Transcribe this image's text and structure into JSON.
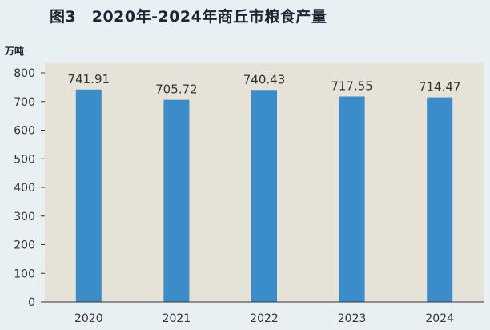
{
  "title": "图3　2020年-2024年商丘市粮食产量",
  "unit_label": "万吨",
  "colors": {
    "bar": "#3a8dc8",
    "plot_bg": "#e6e2d8",
    "page_bg": "#e9f0f4",
    "axis": "#333333",
    "text": "#333333"
  },
  "chart_data": {
    "type": "bar",
    "title": "图3　2020年-2024年商丘市粮食产量",
    "ylabel": "万吨",
    "xlabel": "",
    "categories": [
      "2020",
      "2021",
      "2022",
      "2023",
      "2024"
    ],
    "values": [
      741.91,
      705.72,
      740.43,
      717.55,
      714.47
    ],
    "data_labels": [
      "741.91",
      "705.72",
      "740.43",
      "717.55",
      "714.47"
    ],
    "ylim": [
      0,
      800
    ],
    "yticks": [
      0,
      100,
      200,
      300,
      400,
      500,
      600,
      700,
      800
    ],
    "grid": false,
    "legend": "none"
  }
}
